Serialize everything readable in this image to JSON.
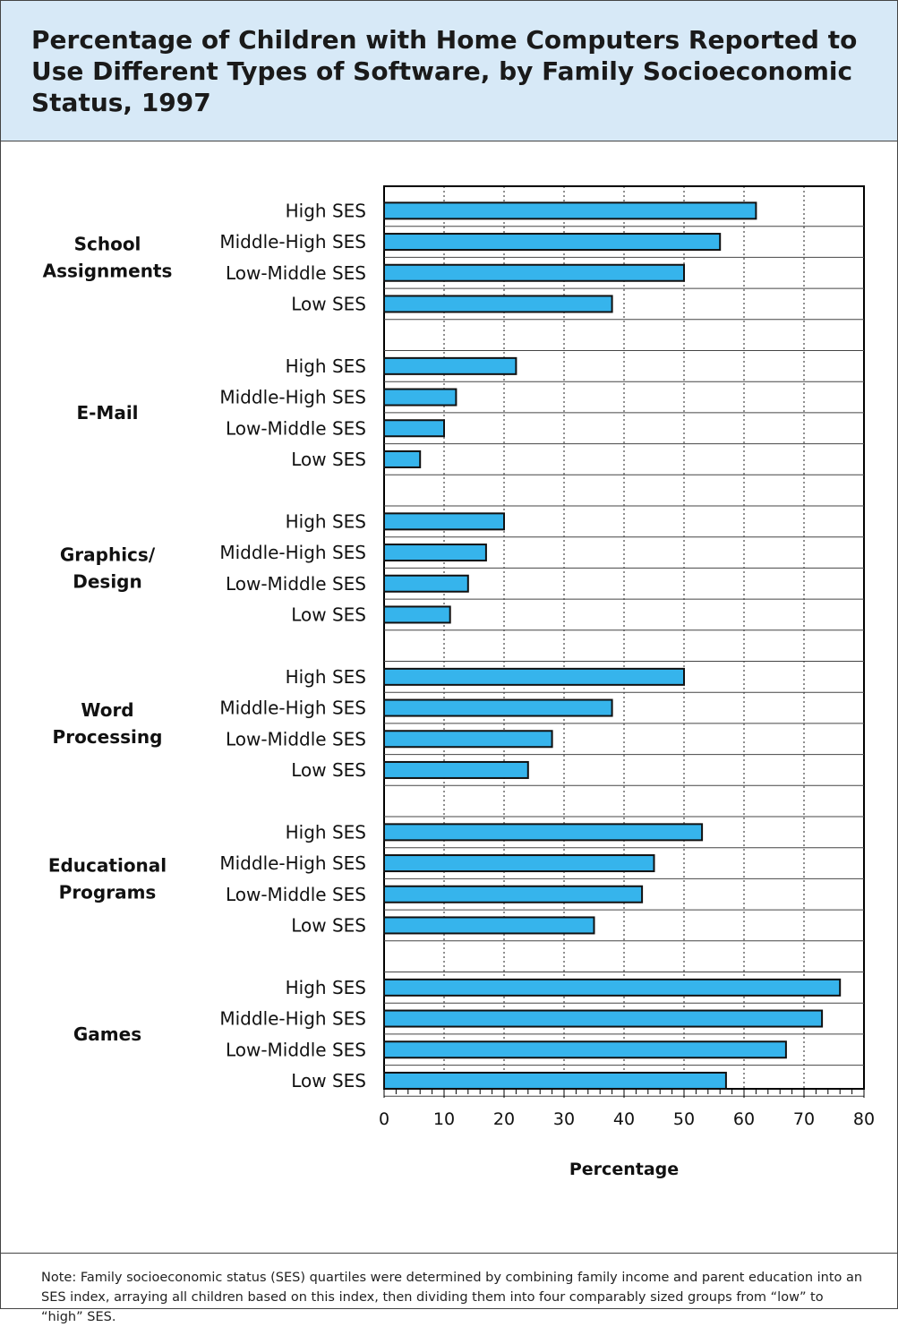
{
  "title": "Percentage of Children with Home Computers Reported to Use Different Types of Software, by Family Socioeconomic Status, 1997",
  "note": "Note: Family socioeconomic status (SES) quartiles were determined by combining family income and parent education into an SES index, arraying all children based on this index, then dividing them into four comparably sized groups from “low” to “high” SES.",
  "colors": {
    "bar": "#36b4ec",
    "header_bg": "#d7e9f7"
  },
  "chart_data": {
    "type": "bar",
    "orientation": "horizontal",
    "groups": [
      {
        "label_lines": [
          "School",
          "Assignments"
        ],
        "bars": [
          {
            "label": "High SES",
            "value": 62
          },
          {
            "label": "Middle-High SES",
            "value": 56
          },
          {
            "label": "Low-Middle SES",
            "value": 50
          },
          {
            "label": "Low SES",
            "value": 38
          }
        ]
      },
      {
        "label_lines": [
          "E-Mail"
        ],
        "bars": [
          {
            "label": "High SES",
            "value": 22
          },
          {
            "label": "Middle-High SES",
            "value": 12
          },
          {
            "label": "Low-Middle SES",
            "value": 10
          },
          {
            "label": "Low SES",
            "value": 6
          }
        ]
      },
      {
        "label_lines": [
          "Graphics/",
          "Design"
        ],
        "bars": [
          {
            "label": "High SES",
            "value": 20
          },
          {
            "label": "Middle-High SES",
            "value": 17
          },
          {
            "label": "Low-Middle SES",
            "value": 14
          },
          {
            "label": "Low SES",
            "value": 11
          }
        ]
      },
      {
        "label_lines": [
          "Word",
          "Processing"
        ],
        "bars": [
          {
            "label": "High SES",
            "value": 50
          },
          {
            "label": "Middle-High SES",
            "value": 38
          },
          {
            "label": "Low-Middle SES",
            "value": 28
          },
          {
            "label": "Low SES",
            "value": 24
          }
        ]
      },
      {
        "label_lines": [
          "Educational",
          "Programs"
        ],
        "bars": [
          {
            "label": "High SES",
            "value": 53
          },
          {
            "label": "Middle-High SES",
            "value": 45
          },
          {
            "label": "Low-Middle SES",
            "value": 43
          },
          {
            "label": "Low SES",
            "value": 35
          }
        ]
      },
      {
        "label_lines": [
          "Games"
        ],
        "bars": [
          {
            "label": "High SES",
            "value": 76
          },
          {
            "label": "Middle-High SES",
            "value": 73
          },
          {
            "label": "Low-Middle SES",
            "value": 67
          },
          {
            "label": "Low SES",
            "value": 57
          }
        ]
      }
    ],
    "xlabel": "Percentage",
    "xlim": [
      0,
      80
    ],
    "xticks": [
      "0",
      "10",
      "20",
      "30",
      "40",
      "50",
      "60",
      "70",
      "80"
    ],
    "grid": "vertical dotted"
  }
}
